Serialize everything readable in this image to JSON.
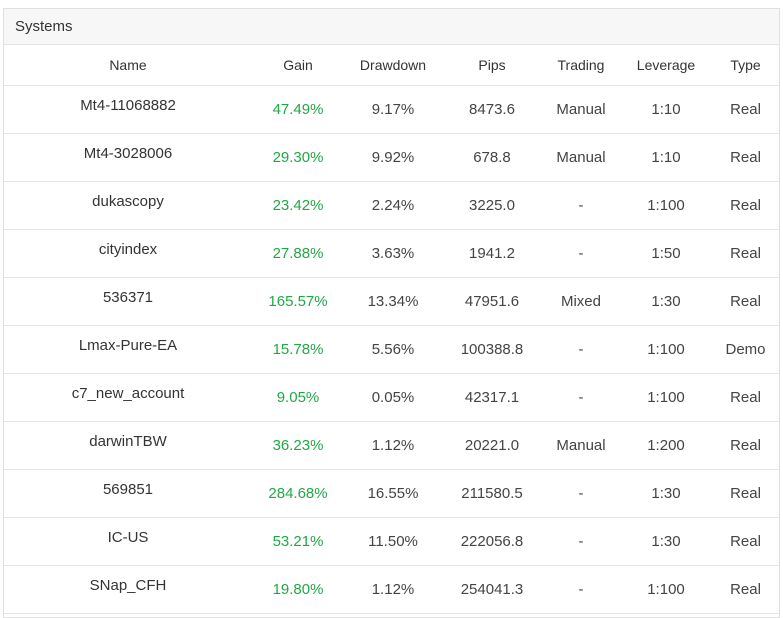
{
  "panel": {
    "title": "Systems"
  },
  "columns": {
    "name": "Name",
    "gain": "Gain",
    "drawdown": "Drawdown",
    "pips": "Pips",
    "trading": "Trading",
    "leverage": "Leverage",
    "type": "Type"
  },
  "colors": {
    "gain": "#21a846",
    "header_bg": "#f7f7f7",
    "border": "#e4e4e4"
  },
  "rows": [
    {
      "name": "Mt4-11068882",
      "gain": "47.49%",
      "drawdown": "9.17%",
      "pips": "8473.6",
      "trading": "Manual",
      "leverage": "1:10",
      "type": "Real"
    },
    {
      "name": "Mt4-3028006",
      "gain": "29.30%",
      "drawdown": "9.92%",
      "pips": "678.8",
      "trading": "Manual",
      "leverage": "1:10",
      "type": "Real"
    },
    {
      "name": "dukascopy",
      "gain": "23.42%",
      "drawdown": "2.24%",
      "pips": "3225.0",
      "trading": "-",
      "leverage": "1:100",
      "type": "Real"
    },
    {
      "name": "cityindex",
      "gain": "27.88%",
      "drawdown": "3.63%",
      "pips": "1941.2",
      "trading": "-",
      "leverage": "1:50",
      "type": "Real"
    },
    {
      "name": "536371",
      "gain": "165.57%",
      "drawdown": "13.34%",
      "pips": "47951.6",
      "trading": "Mixed",
      "leverage": "1:30",
      "type": "Real"
    },
    {
      "name": "Lmax-Pure-EA",
      "gain": "15.78%",
      "drawdown": "5.56%",
      "pips": "100388.8",
      "trading": "-",
      "leverage": "1:100",
      "type": "Demo"
    },
    {
      "name": "c7_new_account",
      "gain": "9.05%",
      "drawdown": "0.05%",
      "pips": "42317.1",
      "trading": "-",
      "leverage": "1:100",
      "type": "Real"
    },
    {
      "name": "darwinTBW",
      "gain": "36.23%",
      "drawdown": "1.12%",
      "pips": "20221.0",
      "trading": "Manual",
      "leverage": "1:200",
      "type": "Real"
    },
    {
      "name": "569851",
      "gain": "284.68%",
      "drawdown": "16.55%",
      "pips": "211580.5",
      "trading": "-",
      "leverage": "1:30",
      "type": "Real"
    },
    {
      "name": "IC-US",
      "gain": "53.21%",
      "drawdown": "11.50%",
      "pips": "222056.8",
      "trading": "-",
      "leverage": "1:30",
      "type": "Real"
    },
    {
      "name": "SNap_CFH",
      "gain": "19.80%",
      "drawdown": "1.12%",
      "pips": "254041.3",
      "trading": "-",
      "leverage": "1:100",
      "type": "Real"
    }
  ]
}
